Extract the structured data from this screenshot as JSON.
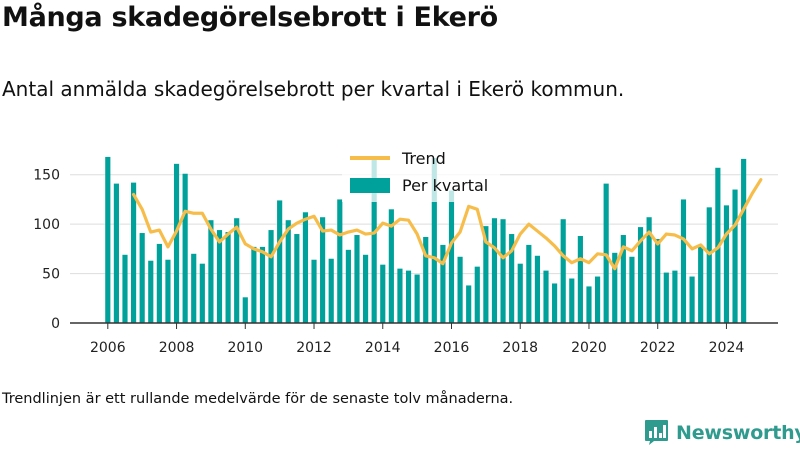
{
  "title": "Många skadegörelsebrott i Ekerö",
  "subtitle": "Antal anmälda skadegörelsebrott per kvartal i Ekerö kommun.",
  "footnote": "Trendlinjen är ett rullande medelvärde för de senaste tolv månaderna.",
  "brand": {
    "name": "Newsworthy",
    "color": "#2f9a8e"
  },
  "colors": {
    "bars": "#00a19a",
    "trend": "#f7bd4a",
    "axis": "#333333"
  },
  "chart_data": {
    "type": "bar",
    "x_start": 2006.0,
    "x_step": 0.25,
    "xlim": [
      2004.9,
      2025.5
    ],
    "ylim": [
      0,
      175
    ],
    "xticks": [
      2006,
      2008,
      2010,
      2012,
      2014,
      2016,
      2018,
      2020,
      2022,
      2024
    ],
    "yticks": [
      0,
      50,
      100,
      150
    ],
    "legend": {
      "placement": "top-center"
    },
    "series": [
      {
        "name": "Per kvartal",
        "type": "bar",
        "values": [
          168,
          141,
          69,
          142,
          91,
          63,
          80,
          64,
          161,
          151,
          70,
          60,
          104,
          94,
          92,
          106,
          26,
          77,
          77,
          94,
          124,
          104,
          90,
          112,
          64,
          107,
          65,
          125,
          74,
          89,
          69,
          167,
          59,
          115,
          55,
          53,
          49,
          87,
          167,
          79,
          134,
          67,
          38,
          57,
          98,
          106,
          105,
          90,
          60,
          79,
          68,
          53,
          40,
          105,
          45,
          88,
          37,
          47,
          141,
          71,
          89,
          67,
          97,
          107,
          85,
          51,
          53,
          125,
          47,
          78,
          117,
          157,
          119,
          135,
          166
        ]
      },
      {
        "name": "Trend",
        "type": "line",
        "x_start": 2006.75,
        "values": [
          130,
          115,
          92,
          94,
          77,
          93,
          113,
          111,
          111,
          95,
          82,
          90,
          97,
          80,
          75,
          72,
          67,
          82,
          95,
          101,
          105,
          108,
          93,
          94,
          89,
          92,
          94,
          90,
          91,
          101,
          98,
          105,
          104,
          90,
          68,
          66,
          60,
          81,
          92,
          118,
          115,
          82,
          76,
          66,
          73,
          90,
          100,
          93,
          86,
          78,
          68,
          61,
          65,
          61,
          70,
          69,
          55,
          77,
          73,
          83,
          92,
          80,
          90,
          89,
          85,
          75,
          79,
          70,
          76,
          90,
          99,
          115,
          131,
          145
        ]
      }
    ]
  }
}
